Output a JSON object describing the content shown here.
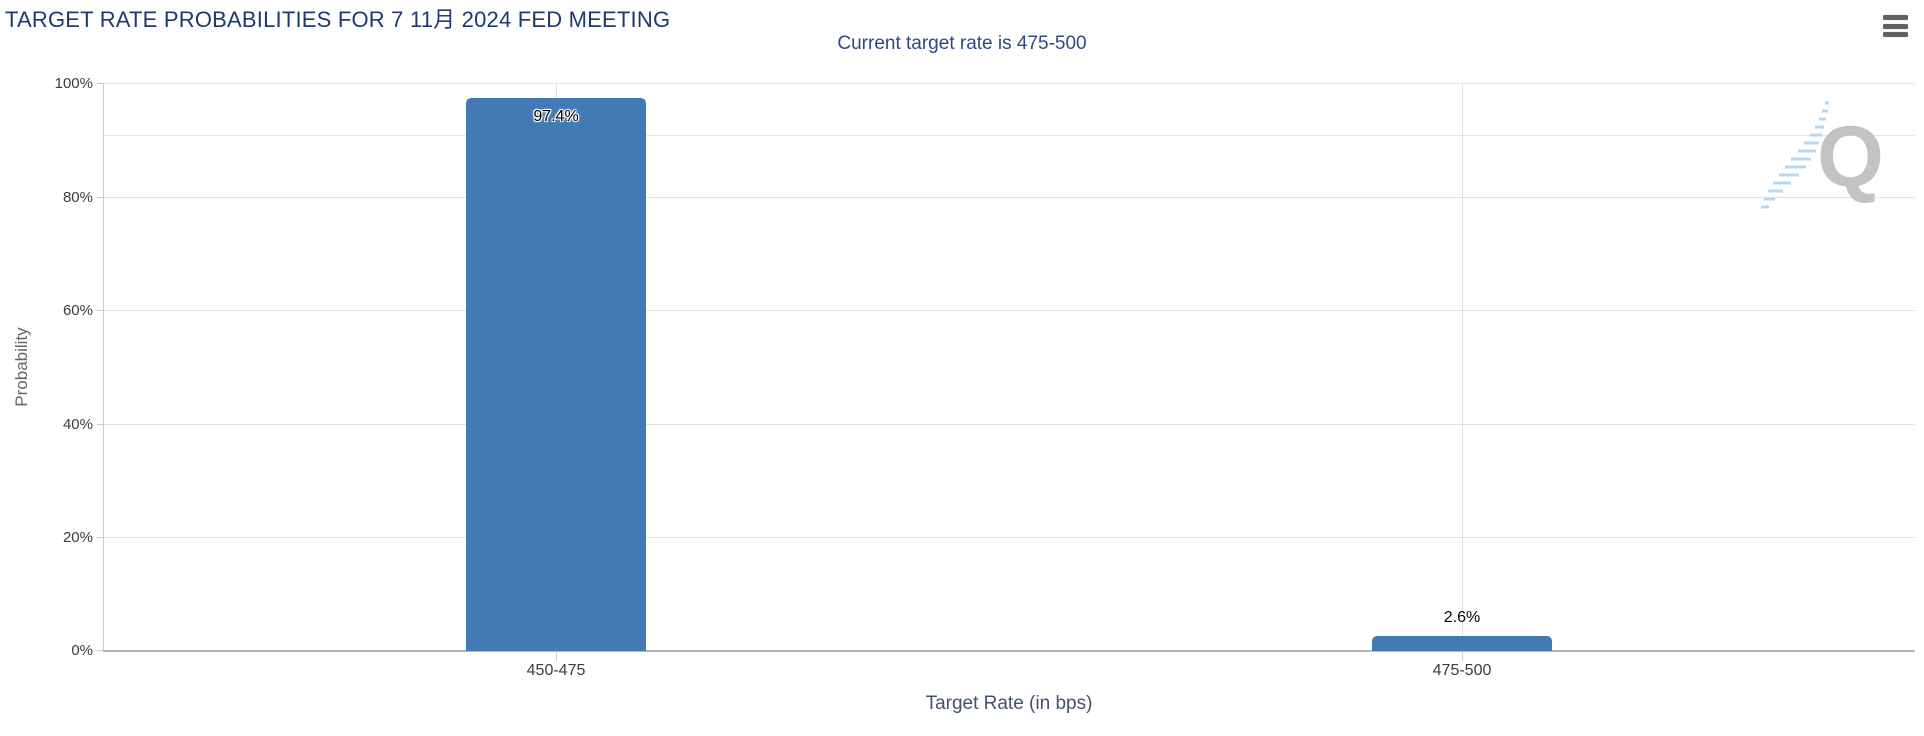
{
  "header": {
    "menu_icon": "hamburger-menu-icon"
  },
  "chart_data": {
    "type": "bar",
    "title": "TARGET RATE PROBABILITIES FOR 7 11月 2024 FED MEETING",
    "subtitle": "Current target rate is 475-500",
    "categories": [
      "450-475",
      "475-500"
    ],
    "values": [
      97.4,
      2.6
    ],
    "value_labels": [
      "97.4%",
      "2.6%"
    ],
    "xlabel": "Target Rate (in bps)",
    "ylabel": "Probability",
    "ylim": [
      0,
      100
    ],
    "ytick_labels": [
      "100%",
      "80%",
      "60%",
      "40%",
      "20%",
      "0%"
    ],
    "grid": true,
    "legend": false,
    "bar_color": "#447ab3",
    "current_target_rate": "475-500",
    "watermark_letter": "Q"
  },
  "colors": {
    "bar": "#447ab3",
    "title_text": "#1e3a6e",
    "subtitle_text": "#2b4b80",
    "gridline": "#e2e2e2",
    "axis_line": "#b5b5b5",
    "watermark_gray": "#c3c3c3",
    "watermark_blue": "#b5d9f5"
  }
}
